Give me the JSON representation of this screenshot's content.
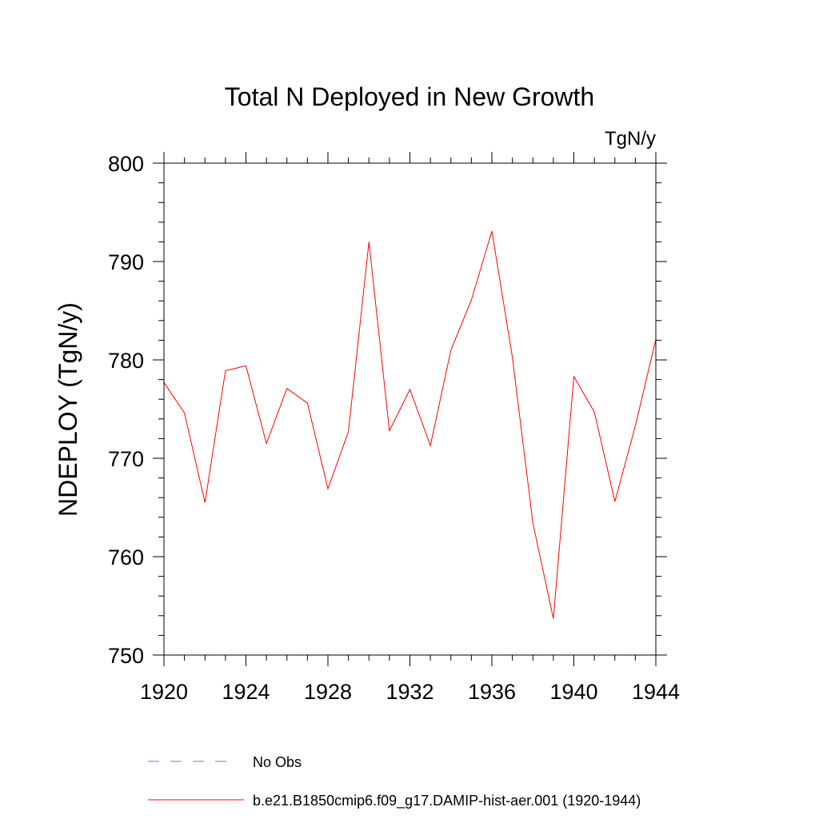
{
  "chart_data": {
    "type": "line",
    "title": "Total N Deployed in New Growth",
    "units_label": "TgN/y",
    "ylabel": "NDEPLOY  (TgN/y)",
    "xlabel": "",
    "xlim": [
      1920,
      1944
    ],
    "ylim": [
      750,
      800
    ],
    "xticks": [
      1920,
      1924,
      1928,
      1932,
      1936,
      1940,
      1944
    ],
    "yticks": [
      750,
      760,
      770,
      780,
      790,
      800
    ],
    "grid": false,
    "legend": "bottom",
    "series": [
      {
        "name": "b.e21.B1850cmip6.f09_g17.DAMIP-hist-aer.001 (1920-1944)",
        "color": "#ff0000",
        "style": "solid",
        "x": [
          1920,
          1921,
          1922,
          1923,
          1924,
          1925,
          1926,
          1927,
          1928,
          1929,
          1930,
          1931,
          1932,
          1933,
          1934,
          1935,
          1936,
          1937,
          1938,
          1939,
          1940,
          1941,
          1942,
          1943,
          1944
        ],
        "values": [
          777.7,
          774.6,
          765.5,
          778.9,
          779.4,
          771.5,
          777.1,
          775.6,
          766.9,
          772.7,
          792.0,
          772.8,
          777.0,
          771.3,
          781.0,
          786.1,
          793.1,
          780.3,
          763.4,
          753.7,
          778.3,
          774.7,
          765.6,
          773.3,
          782.1
        ]
      },
      {
        "name": "No Obs",
        "color": "#7a7ab8",
        "style": "dashed",
        "x": [],
        "values": []
      }
    ]
  }
}
